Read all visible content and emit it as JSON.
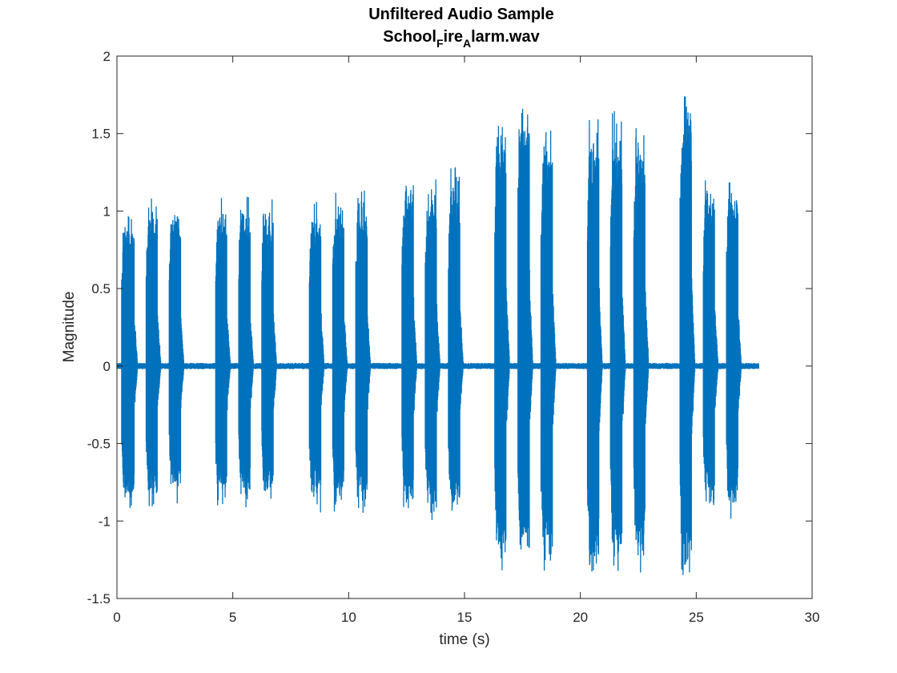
{
  "chart_data": {
    "type": "line",
    "title_main": "Unfiltered Audio Sample",
    "title_file_parts": [
      "School",
      "F",
      "ire",
      "A",
      "larm.wav"
    ],
    "xlabel": "time (s)",
    "ylabel": "Magnitude",
    "xlim": [
      0,
      30
    ],
    "ylim": [
      -1.5,
      2
    ],
    "xticks": [
      0,
      5,
      10,
      15,
      20,
      25,
      30
    ],
    "xtick_labels": [
      "0",
      "5",
      "10",
      "15",
      "20",
      "25",
      "30"
    ],
    "yticks": [
      -1.5,
      -1,
      -0.5,
      0,
      0.5,
      1,
      1.5,
      2
    ],
    "ytick_labels": [
      "-1.5",
      "-1",
      "-0.5",
      "0",
      "0.5",
      "1",
      "1.5",
      "2"
    ],
    "grid": false,
    "line_color": "#0072BD",
    "duration_s": 27.7,
    "series": [
      {
        "values_note": "",
        "bursts": [
          {
            "start": 0.2,
            "end": 0.75,
            "max": 1.0,
            "min": -0.95
          },
          {
            "start": 1.25,
            "end": 1.75,
            "max": 1.1,
            "min": -0.92
          },
          {
            "start": 2.25,
            "end": 2.75,
            "max": 1.08,
            "min": -0.9
          },
          {
            "start": 4.25,
            "end": 4.75,
            "max": 1.1,
            "min": -0.9
          },
          {
            "start": 5.25,
            "end": 5.75,
            "max": 1.12,
            "min": -0.95
          },
          {
            "start": 6.25,
            "end": 6.75,
            "max": 1.1,
            "min": -0.92
          },
          {
            "start": 8.3,
            "end": 8.8,
            "max": 1.12,
            "min": -0.95
          },
          {
            "start": 9.3,
            "end": 9.8,
            "max": 1.12,
            "min": -0.95
          },
          {
            "start": 10.3,
            "end": 10.8,
            "max": 1.15,
            "min": -0.95
          },
          {
            "start": 12.3,
            "end": 12.8,
            "max": 1.3,
            "min": -1.0
          },
          {
            "start": 13.3,
            "end": 13.8,
            "max": 1.25,
            "min": -1.0
          },
          {
            "start": 14.3,
            "end": 14.8,
            "max": 1.3,
            "min": -1.0
          },
          {
            "start": 16.3,
            "end": 16.8,
            "max": 1.7,
            "min": -1.35
          },
          {
            "start": 17.3,
            "end": 17.8,
            "max": 1.87,
            "min": -1.35
          },
          {
            "start": 18.3,
            "end": 18.8,
            "max": 1.65,
            "min": -1.35
          },
          {
            "start": 20.3,
            "end": 20.8,
            "max": 1.66,
            "min": -1.46
          },
          {
            "start": 21.3,
            "end": 21.8,
            "max": 1.65,
            "min": -1.35
          },
          {
            "start": 22.3,
            "end": 22.8,
            "max": 1.65,
            "min": -1.35
          },
          {
            "start": 24.3,
            "end": 24.8,
            "max": 1.81,
            "min": -1.45
          },
          {
            "start": 25.3,
            "end": 25.8,
            "max": 1.25,
            "min": -0.95
          },
          {
            "start": 26.3,
            "end": 26.8,
            "max": 1.2,
            "min": -1.0
          }
        ]
      }
    ]
  }
}
